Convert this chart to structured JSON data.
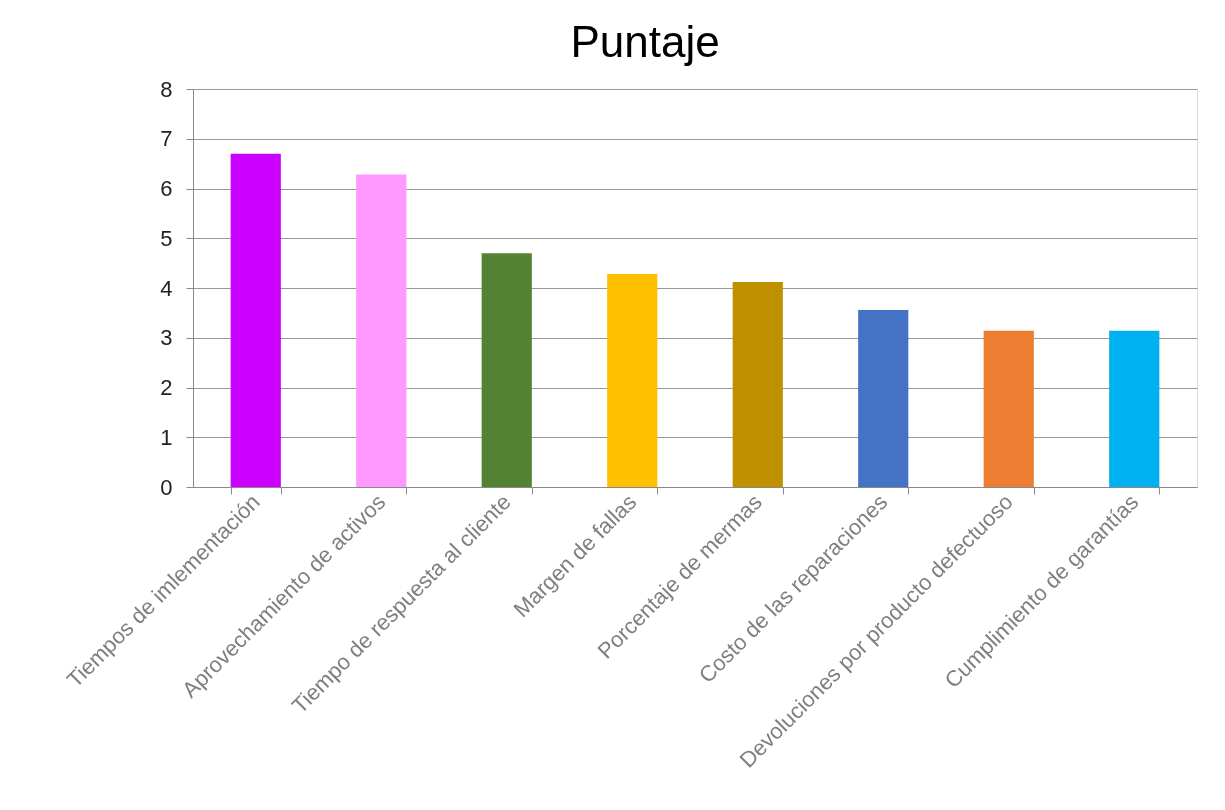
{
  "chart_data": {
    "type": "bar",
    "title": "Puntaje",
    "categories": [
      "Tiempos de imlementación",
      "Aprovechamiento de activos",
      "Tiempo de respuesta al cliente",
      "Margen de fallas",
      "Porcentaje de mermas",
      "Costo de las reparaciones",
      "Devoluciones por producto defectuoso",
      "Cumplimiento de garantías"
    ],
    "values": [
      6.7,
      6.28,
      4.7,
      4.28,
      4.12,
      3.56,
      3.14,
      3.14
    ],
    "colors": [
      "#cc00ff",
      "#ff99ff",
      "#548235",
      "#ffc000",
      "#bf9000",
      "#4472c4",
      "#ed7d31",
      "#00b0f0"
    ],
    "ylim": [
      0,
      8
    ],
    "yticks": [
      0,
      1,
      2,
      3,
      4,
      5,
      6,
      7,
      8
    ],
    "grid": "y"
  }
}
